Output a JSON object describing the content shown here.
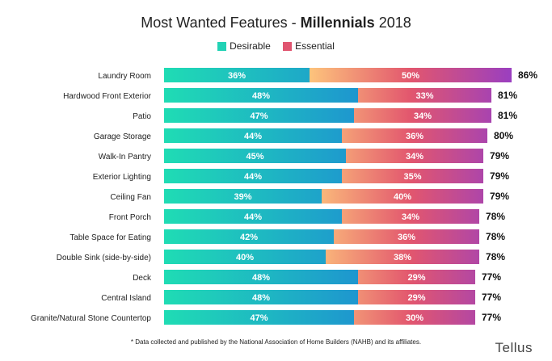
{
  "chart_data": {
    "type": "bar",
    "stacked": true,
    "orientation": "horizontal",
    "title_prefix": "Most Wanted Features - ",
    "title_bold": "Millennials",
    "title_suffix": " 2018",
    "categories": [
      "Laundry Room",
      "Hardwood Front Exterior",
      "Patio",
      "Garage Storage",
      "Walk-In Pantry",
      "Exterior Lighting",
      "Ceiling Fan",
      "Front Porch",
      "Table Space for Eating",
      "Double Sink (side-by-side)",
      "Deck",
      "Central Island",
      "Granite/Natural Stone Countertop"
    ],
    "series": [
      {
        "name": "Desirable",
        "values": [
          36,
          48,
          47,
          44,
          45,
          44,
          39,
          44,
          42,
          40,
          48,
          48,
          47
        ]
      },
      {
        "name": "Essential",
        "values": [
          50,
          33,
          34,
          36,
          34,
          35,
          40,
          34,
          36,
          38,
          29,
          29,
          30
        ]
      }
    ],
    "totals": [
      86,
      81,
      81,
      80,
      79,
      79,
      79,
      78,
      78,
      78,
      77,
      77,
      77
    ],
    "value_suffix": "%",
    "legend_position": "top",
    "grid": false,
    "colors": {
      "desirable_start": "#1fdcb4",
      "desirable_end": "#1e96cf",
      "essential_start": "#fdc47c",
      "essential_mid": "#e2566e",
      "essential_end": "#9a3fc0",
      "desirable_swatch": "#22d2b5",
      "essential_swatch": "#e05570"
    }
  },
  "footnote": "* Data collected and published by the National Association of Home Builders (NAHB) and its affiliates.",
  "brand": "Tellus"
}
